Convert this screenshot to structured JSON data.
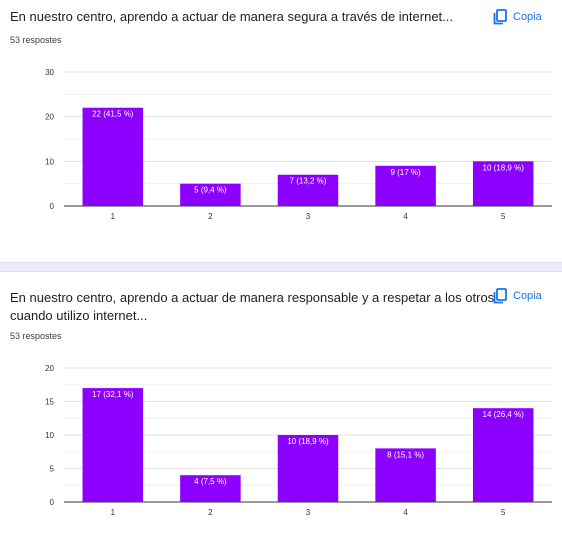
{
  "cards": [
    {
      "title": "En nuestro centro, aprendo a actuar de manera segura a través de internet...",
      "responses": "53 respostes",
      "copy_label": "Copia"
    },
    {
      "title_line1": "En nuestro centro, aprendo a actuar de manera responsable y a respetar a los otros",
      "title_line2": "cuando utilizo internet...",
      "responses": "53 respostes",
      "copy_label": "Copia"
    }
  ],
  "colors": {
    "bar": "#8b00ff",
    "accent": "#1a73e8",
    "grid": "#e0e0e0"
  },
  "chart_data": [
    {
      "type": "bar",
      "categories": [
        "1",
        "2",
        "3",
        "4",
        "5"
      ],
      "values": [
        22,
        5,
        7,
        9,
        10
      ],
      "labels": [
        "22 (41,5 %)",
        "5 (9,4 %)",
        "7 (13,2 %)",
        "9 (17 %)",
        "10 (18,9 %)"
      ],
      "ylim": [
        0,
        30
      ],
      "yticks": [
        0,
        10,
        20,
        30
      ]
    },
    {
      "type": "bar",
      "categories": [
        "1",
        "2",
        "3",
        "4",
        "5"
      ],
      "values": [
        17,
        4,
        10,
        8,
        14
      ],
      "labels": [
        "17 (32,1 %)",
        "4 (7,5 %)",
        "10 (18,9 %)",
        "8 (15,1 %)",
        "14 (26,4 %)"
      ],
      "ylim": [
        0,
        20
      ],
      "yticks": [
        0,
        5,
        10,
        15,
        20
      ]
    }
  ]
}
